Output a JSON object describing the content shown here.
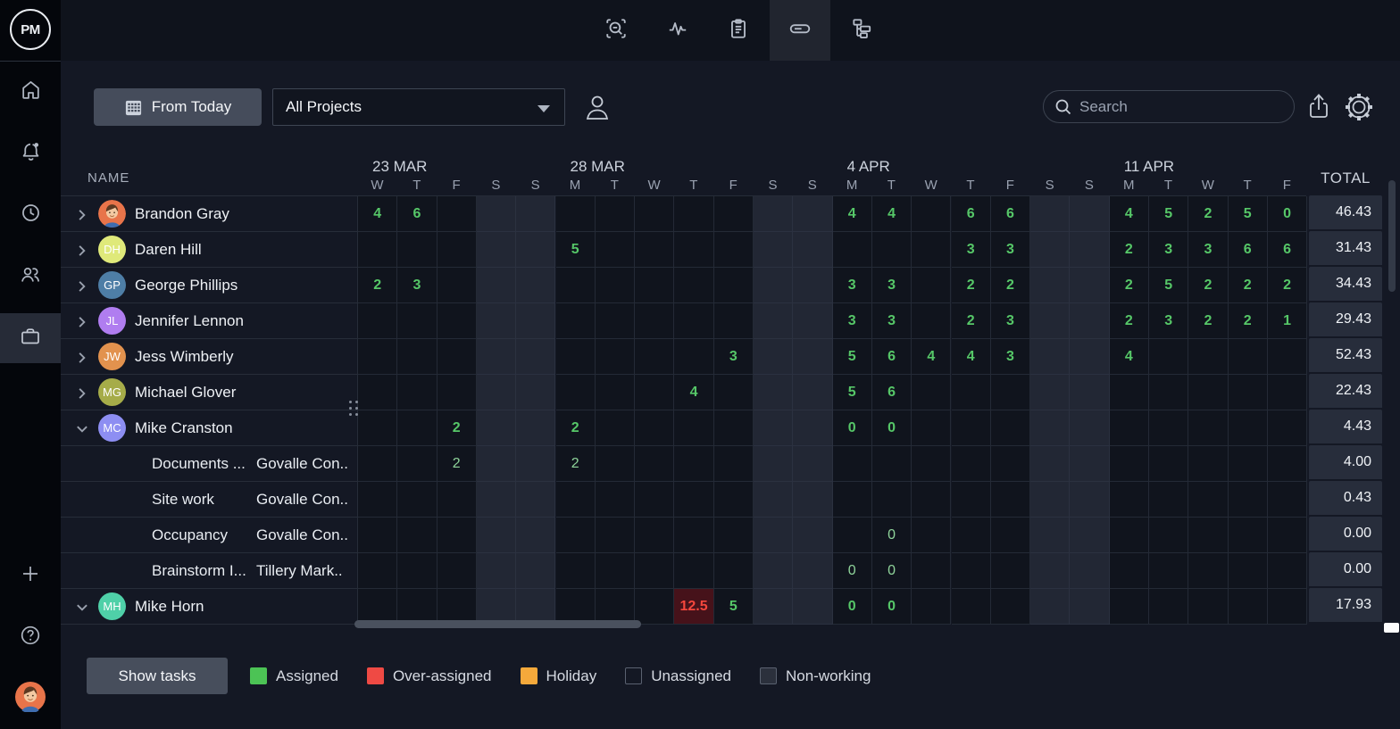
{
  "logo": "PM",
  "sidebar": {
    "top_items": [
      {
        "icon": "home"
      },
      {
        "icon": "notifications",
        "badge": true
      },
      {
        "icon": "history"
      },
      {
        "icon": "team"
      },
      {
        "icon": "portfolio",
        "active": true
      }
    ],
    "bottom_items": [
      {
        "icon": "add"
      },
      {
        "icon": "help"
      },
      {
        "icon": "user-avatar"
      }
    ]
  },
  "toolbar": {
    "tabs": [
      {
        "icon": "zoom-search"
      },
      {
        "icon": "activity"
      },
      {
        "icon": "report"
      },
      {
        "icon": "workload",
        "active": true
      },
      {
        "icon": "workflow"
      }
    ]
  },
  "filters": {
    "date_button": "From Today",
    "project_select": "All Projects",
    "search_placeholder": "Search"
  },
  "table": {
    "name_header": "NAME",
    "total_header": "TOTAL",
    "weeks": [
      {
        "label": "23 MAR",
        "days": [
          "W",
          "T",
          "F",
          "S",
          "S"
        ]
      },
      {
        "label": "28 MAR",
        "days": [
          "M",
          "T",
          "W",
          "T",
          "F",
          "S",
          "S"
        ]
      },
      {
        "label": "4 APR",
        "days": [
          "M",
          "T",
          "W",
          "T",
          "F",
          "S",
          "S"
        ]
      },
      {
        "label": "11 APR",
        "days": [
          "M",
          "T",
          "W",
          "T",
          "F"
        ]
      }
    ],
    "weekend_columns": [
      3,
      4,
      10,
      11,
      17,
      18
    ],
    "rows": [
      {
        "type": "person",
        "name": "Brandon Gray",
        "avatar": {
          "kind": "photo",
          "color": "#e8744a"
        },
        "expanded": false,
        "total": "46.43",
        "cells": {
          "0": "4",
          "1": "6",
          "12": "4",
          "13": "4",
          "15": "6",
          "16": "6",
          "19": "4",
          "20": "5",
          "21": "2",
          "22": "5",
          "23": "0"
        }
      },
      {
        "type": "person",
        "name": "Daren Hill",
        "avatar": {
          "kind": "initials",
          "text": "DH",
          "color": "#dfe97a"
        },
        "expanded": false,
        "total": "31.43",
        "cells": {
          "5": "5",
          "15": "3",
          "16": "3",
          "19": "2",
          "20": "3",
          "21": "3",
          "22": "6",
          "23": "6"
        }
      },
      {
        "type": "person",
        "name": "George Phillips",
        "avatar": {
          "kind": "initials",
          "text": "GP",
          "color": "#4e7ea6"
        },
        "expanded": false,
        "total": "34.43",
        "cells": {
          "0": "2",
          "1": "3",
          "12": "3",
          "13": "3",
          "15": "2",
          "16": "2",
          "19": "2",
          "20": "5",
          "21": "2",
          "22": "2",
          "23": "2"
        }
      },
      {
        "type": "person",
        "name": "Jennifer Lennon",
        "avatar": {
          "kind": "initials",
          "text": "JL",
          "color": "#b07df0"
        },
        "expanded": false,
        "total": "29.43",
        "cells": {
          "12": "3",
          "13": "3",
          "15": "2",
          "16": "3",
          "19": "2",
          "20": "3",
          "21": "2",
          "22": "2",
          "23": "1"
        }
      },
      {
        "type": "person",
        "name": "Jess Wimberly",
        "avatar": {
          "kind": "initials",
          "text": "JW",
          "color": "#e2924e"
        },
        "expanded": false,
        "total": "52.43",
        "cells": {
          "9": "3",
          "12": "5",
          "13": "6",
          "14": "4",
          "15": "4",
          "16": "3",
          "19": "4"
        }
      },
      {
        "type": "person",
        "name": "Michael Glover",
        "avatar": {
          "kind": "initials",
          "text": "MG",
          "color": "#a6ac49"
        },
        "expanded": false,
        "total": "22.43",
        "cells": {
          "8": "4",
          "12": "5",
          "13": "6"
        }
      },
      {
        "type": "person",
        "name": "Mike Cranston",
        "avatar": {
          "kind": "initials",
          "text": "MC",
          "color": "#8d8ef2"
        },
        "expanded": true,
        "total": "4.43",
        "cells": {
          "2": "2",
          "5": "2",
          "12": "0",
          "13": "0"
        }
      },
      {
        "type": "task",
        "task": "Documents ...",
        "project": "Govalle Con..",
        "total": "4.00",
        "cells": {
          "2": "2",
          "5": "2"
        }
      },
      {
        "type": "task",
        "task": "Site work",
        "project": "Govalle Con..",
        "total": "0.43",
        "cells": {}
      },
      {
        "type": "task",
        "task": "Occupancy",
        "project": "Govalle Con..",
        "total": "0.00",
        "cells": {
          "13": "0"
        }
      },
      {
        "type": "task",
        "task": "Brainstorm I...",
        "project": "Tillery Mark..",
        "total": "0.00",
        "cells": {
          "12": "0",
          "13": "0"
        }
      },
      {
        "type": "person",
        "name": "Mike Horn",
        "avatar": {
          "kind": "initials",
          "text": "MH",
          "color": "#4fd0a8"
        },
        "expanded": true,
        "total": "17.93",
        "cells": {
          "8": {
            "value": "12.5",
            "state": "over"
          },
          "9": "5",
          "12": "0",
          "13": "0"
        }
      }
    ]
  },
  "footer": {
    "show_tasks": "Show tasks",
    "legend": [
      {
        "label": "Assigned",
        "style": "filled",
        "color": "#4cc355"
      },
      {
        "label": "Over-assigned",
        "style": "filled",
        "color": "#ef4a44"
      },
      {
        "label": "Holiday",
        "style": "filled",
        "color": "#f5a93b"
      },
      {
        "label": "Unassigned",
        "style": "outline",
        "color": ""
      },
      {
        "label": "Non-working",
        "style": "outline-filled",
        "color": "#2b303c"
      }
    ]
  },
  "colors": {
    "assigned_text": "#56c768",
    "over_assigned_text": "#f4473d",
    "over_assigned_bg": "#46121a",
    "weekend_cell": "#222734",
    "weekday_cell": "#10141d"
  }
}
